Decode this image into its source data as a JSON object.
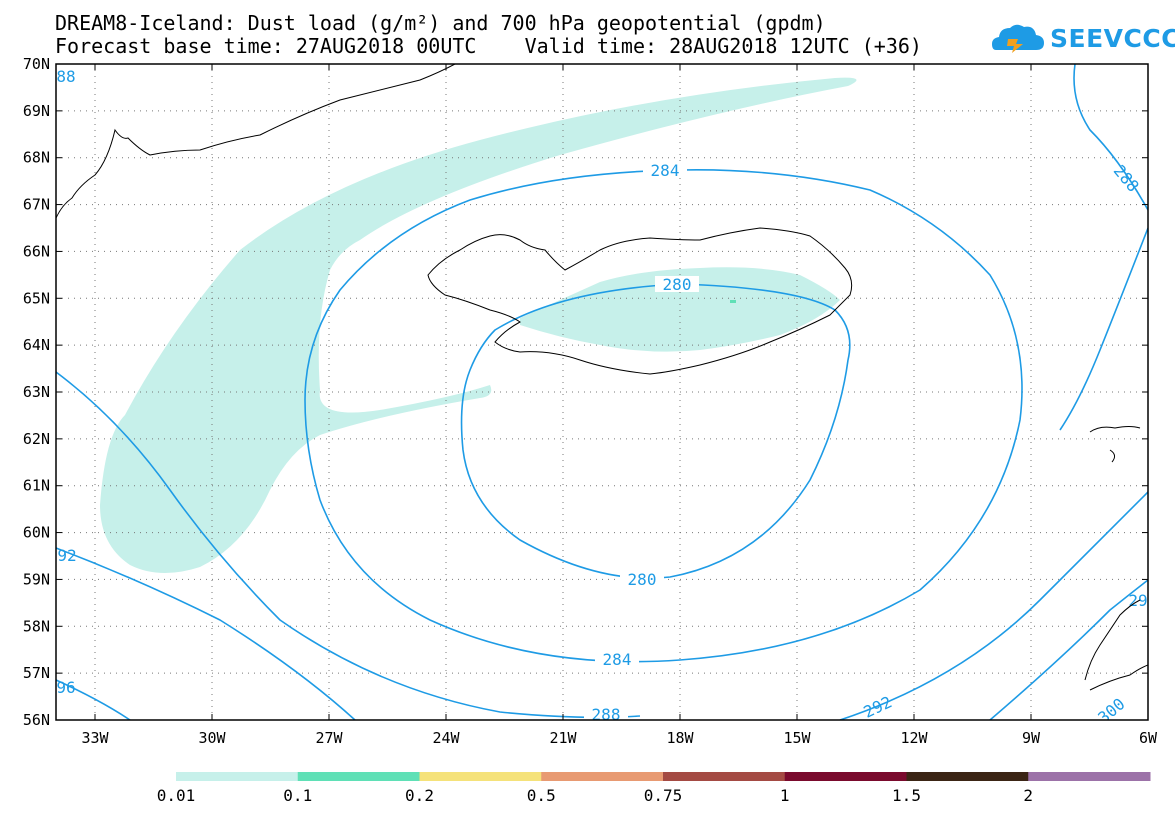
{
  "title": {
    "line1": "DREAM8-Iceland: Dust load (g/m²) and 700 hPa geopotential (gpdm)",
    "line2": "Forecast base time: 27AUG2018 00UTC    Valid time: 28AUG2018 12UTC (+36)"
  },
  "logo": {
    "text": "SEEVCCC",
    "icon": "cloud-icon"
  },
  "axes": {
    "lat_labels": [
      "70N",
      "69N",
      "68N",
      "67N",
      "66N",
      "65N",
      "64N",
      "63N",
      "62N",
      "61N",
      "60N",
      "59N",
      "58N",
      "57N",
      "56N"
    ],
    "lon_labels": [
      "33W",
      "30W",
      "27W",
      "24W",
      "21W",
      "18W",
      "15W",
      "12W",
      "9W",
      "6W"
    ]
  },
  "contours": [
    {
      "label": "280"
    },
    {
      "label": "280"
    },
    {
      "label": "284"
    },
    {
      "label": "284"
    },
    {
      "label": "288"
    },
    {
      "label": "288"
    },
    {
      "label": "292"
    },
    {
      "label": "92"
    },
    {
      "label": "96"
    },
    {
      "label": "88"
    },
    {
      "label": "300"
    },
    {
      "label": "29"
    }
  ],
  "colorbar": {
    "labels": [
      "0.01",
      "0.1",
      "0.2",
      "0.5",
      "0.75",
      "1",
      "1.5",
      "2"
    ],
    "colors": [
      "#c6f0ea",
      "#5fe0b6",
      "#f5e27a",
      "#e89a72",
      "#a44a43",
      "#7a0a2d",
      "#3b2515",
      "#9c72a8"
    ]
  },
  "colors": {
    "contour": "#1e9be5",
    "dust_light": "#c6f0ea",
    "dust_mid": "#5fe0b6",
    "coast": "#000000",
    "grid": "#777777"
  }
}
